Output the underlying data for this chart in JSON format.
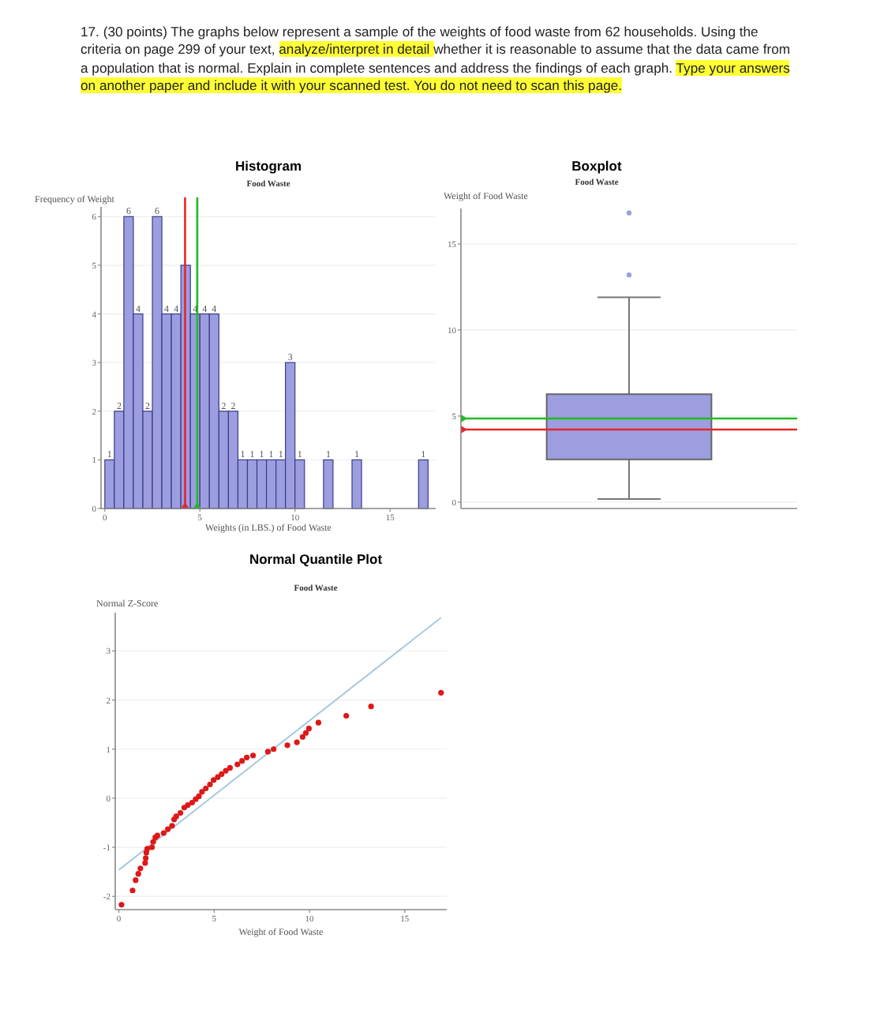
{
  "chart_data": [
    {
      "type": "histogram",
      "title": "Histogram",
      "subtitle": "Food Waste",
      "xlabel": "Weights (in LBS.) of Food Waste",
      "ylabel": "Frequency of Weight",
      "color": "#9c9ee0",
      "annotations": [
        "17. (30 points) The graphs below represent a sample of the weights of food waste from 62 households. Using the criteria on page 299 of your text,",
        "analyze/interpret in detail",
        "whether it is reasonable to assume that the data came from a population that is normal. Explain in complete sentences and address the findings of each graph.",
        "Type your answers on another paper and include it with your scanned test. You do not need to scan this page."
      ],
      "bins": [
        0,
        0.5,
        1,
        1.5,
        2,
        2.5,
        3,
        3.5,
        4,
        4.5,
        5,
        5.5,
        6,
        6.5,
        7,
        7.5,
        8,
        8.5,
        9,
        9.5,
        10,
        10.5,
        11.5,
        12,
        13,
        13.5,
        16.5,
        17
      ],
      "values": [
        1,
        2,
        6,
        4,
        2,
        6,
        4,
        4,
        5,
        4,
        4,
        4,
        2,
        2,
        1,
        1,
        1,
        1,
        1,
        3,
        1,
        0,
        1,
        0,
        1,
        0,
        1
      ],
      "value_labels": [
        "1",
        "2",
        "6",
        "4",
        "2",
        "6",
        "4",
        "4",
        null,
        "4",
        "4",
        "4",
        "2",
        "2",
        "1",
        "1",
        "1",
        "1",
        "1",
        "3",
        "1",
        null,
        "1",
        null,
        "1",
        null,
        "1"
      ],
      "xlim": [
        -0.2,
        17.4
      ],
      "ylim": [
        0,
        6.2
      ],
      "xticks": [
        0,
        5,
        10,
        15
      ],
      "yticks": [
        0,
        1,
        2,
        3,
        4,
        5,
        6
      ],
      "grid": "y",
      "ref_lines": [
        {
          "axis": "x",
          "value": 4.22,
          "color": "#e8242a"
        },
        {
          "axis": "x",
          "value": 4.86,
          "color": "#22bb22"
        }
      ]
    },
    {
      "type": "box",
      "title": "Boxplot",
      "subtitle": "Food Waste",
      "ylabel": "Weight of Food Waste",
      "color": "#9c9ee0",
      "categories": [
        null
      ],
      "boxes": [
        {
          "low": 0.18,
          "q1": 2.48,
          "median": 4.22,
          "q3": 6.27,
          "high": 11.9,
          "outliers": [
            13.2,
            16.8
          ]
        }
      ],
      "ylim": [
        -0.37,
        17.06
      ],
      "yticks": [
        0,
        5,
        10,
        15
      ],
      "grid": "y",
      "ref_lines": [
        {
          "axis": "y",
          "value": 4.22,
          "color": "#e8242a"
        },
        {
          "axis": "y",
          "value": 4.86,
          "color": "#22bb22"
        }
      ]
    },
    {
      "type": "scatter",
      "title": "Normal Quantile Plot",
      "subtitle": "Food Waste",
      "xlabel": "Weight of Food Waste",
      "ylabel": "Normal Z-Score",
      "xlim": [
        -0.19,
        17.2
      ],
      "ylim": [
        -2.27,
        3.78
      ],
      "xticks": [
        0,
        5,
        10,
        15
      ],
      "yticks": [
        -2,
        -1,
        0,
        1,
        2,
        3
      ],
      "grid": "y",
      "series": [
        {
          "type": "scatter",
          "marker": "circle",
          "color": "#dd1818",
          "x": [
            0.14,
            0.72,
            0.88,
            1.02,
            1.13,
            1.38,
            1.41,
            1.44,
            1.49,
            1.74,
            1.8,
            1.91,
            2.02,
            2.35,
            2.57,
            2.79,
            2.9,
            3.01,
            3.23,
            3.43,
            3.62,
            3.84,
            4.03,
            4.2,
            4.36,
            4.56,
            4.78,
            4.97,
            5.19,
            5.39,
            5.61,
            5.83,
            6.22,
            6.46,
            6.71,
            7.04,
            7.82,
            8.12,
            8.84,
            9.34,
            9.64,
            9.81,
            9.97,
            10.47,
            11.93,
            13.23,
            16.9
          ],
          "values": [
            -2.17,
            -1.88,
            -1.67,
            -1.54,
            -1.43,
            -1.32,
            -1.22,
            -1.11,
            -1.03,
            -1,
            -0.89,
            -0.8,
            -0.76,
            -0.71,
            -0.63,
            -0.56,
            -0.43,
            -0.37,
            -0.3,
            -0.19,
            -0.14,
            -0.09,
            -0.02,
            0.04,
            0.13,
            0.2,
            0.28,
            0.37,
            0.43,
            0.49,
            0.56,
            0.62,
            0.69,
            0.76,
            0.83,
            0.87,
            0.95,
            1,
            1.08,
            1.14,
            1.25,
            1.33,
            1.42,
            1.54,
            1.68,
            1.87,
            2.15
          ]
        },
        {
          "type": "line",
          "color": "#a9c9e2",
          "x": [
            0,
            16.9
          ],
          "values": [
            -1.46,
            3.68
          ]
        }
      ]
    }
  ]
}
